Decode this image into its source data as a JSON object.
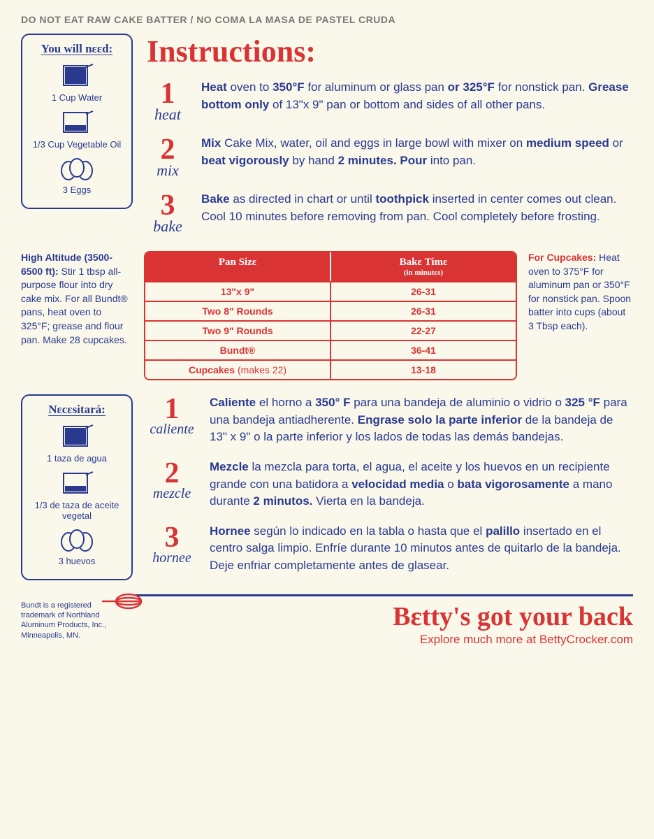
{
  "warning": "DO NOT EAT RAW CAKE BATTER / NO COMA LA MASA DE PASTEL CRUDA",
  "instructions_title": "Instructions:",
  "need_en": {
    "title": "You will nεεd:",
    "items": [
      "1 Cup Water",
      "1/3 Cup Vegetable Oil",
      "3 Eggs"
    ]
  },
  "need_es": {
    "title": "Nεcεsitará:",
    "items": [
      "1 taza de agua",
      "1/3 de taza de aceite vegetal",
      "3 huevos"
    ]
  },
  "steps_en": [
    {
      "num": "1",
      "word": "heat",
      "html": "<b>Heat</b> oven to <b>350°F</b> for aluminum or glass pan <b>or 325°F</b> for nonstick pan. <b>Grease bottom only</b> of 13\"x 9\" pan or bottom and sides of all other pans."
    },
    {
      "num": "2",
      "word": "mix",
      "html": "<b>Mix</b> Cake Mix, water, oil and eggs in large bowl with mixer on <b>medium speed</b> or <b>beat vigorously</b> by hand <b>2 minutes. Pour</b> into pan."
    },
    {
      "num": "3",
      "word": "bake",
      "html": "<b>Bake</b> as directed in chart or until <b>toothpick</b> inserted in center comes out clean. Cool 10 minutes before removing from pan. Cool completely before frosting."
    }
  ],
  "steps_es": [
    {
      "num": "1",
      "word": "caliente",
      "html": "<b>Caliente</b> el horno a <b>350° F</b> para una bandeja de aluminio o vidrio o <b>325 °F</b> para una bandeja antiadherente. <b>Engrase solo la parte inferior</b> de la bandeja de 13\" x 9\" o la parte inferior y los lados de todas las demás bandejas."
    },
    {
      "num": "2",
      "word": "mezcle",
      "html": "<b>Mezcle</b> la mezcla para torta, el agua, el aceite y los huevos en un recipiente grande con una batidora a <b>velocidad media</b> o <b>bata vigorosamente</b> a mano durante <b>2 minutos.</b> Vierta en la bandeja."
    },
    {
      "num": "3",
      "word": "hornee",
      "html": "<b>Hornee</b> según lo indicado en la tabla o hasta que el <b>palillo</b> insertado en el centro salga limpio. Enfríe durante 10 minutos antes de quitarlo de la bandeja. Deje enfriar completamente antes de glasear."
    }
  ],
  "altitude": {
    "title": "High Altitude (3500-6500 ft):",
    "text": "Stir 1 tbsp all-purpose flour into dry cake mix. For all Bundt® pans, heat oven to 325°F; grease and flour pan. Make 28 cupcakes."
  },
  "cupcakes": {
    "title": "For Cupcakes:",
    "text": "Heat oven to 375°F for aluminum pan or 350°F for nonstick pan. Spoon batter into cups (about 3 Tbsp each)."
  },
  "table": {
    "headers": [
      "Pan Sizε",
      "Bakε Timε"
    ],
    "sub": "(in minutεs)",
    "rows": [
      [
        "13\"x 9\"",
        "26-31"
      ],
      [
        "Two 8\" Rounds",
        "26-31"
      ],
      [
        "Two 9\" Rounds",
        "22-27"
      ],
      [
        "Bundt®",
        "36-41"
      ],
      [
        "Cupcakes|(makes 22)",
        "13-18"
      ]
    ]
  },
  "trademark": "Bundt is a registered trademark of Northland Aluminum Products, Inc., Minneapolis, MN.",
  "footer_slogan": "Bεtty's got your back",
  "footer_sub": "Explore much more at BettyCrocker.com",
  "colors": {
    "red": "#d93333",
    "blue": "#2a3a8f",
    "bg": "#faf8eb"
  }
}
